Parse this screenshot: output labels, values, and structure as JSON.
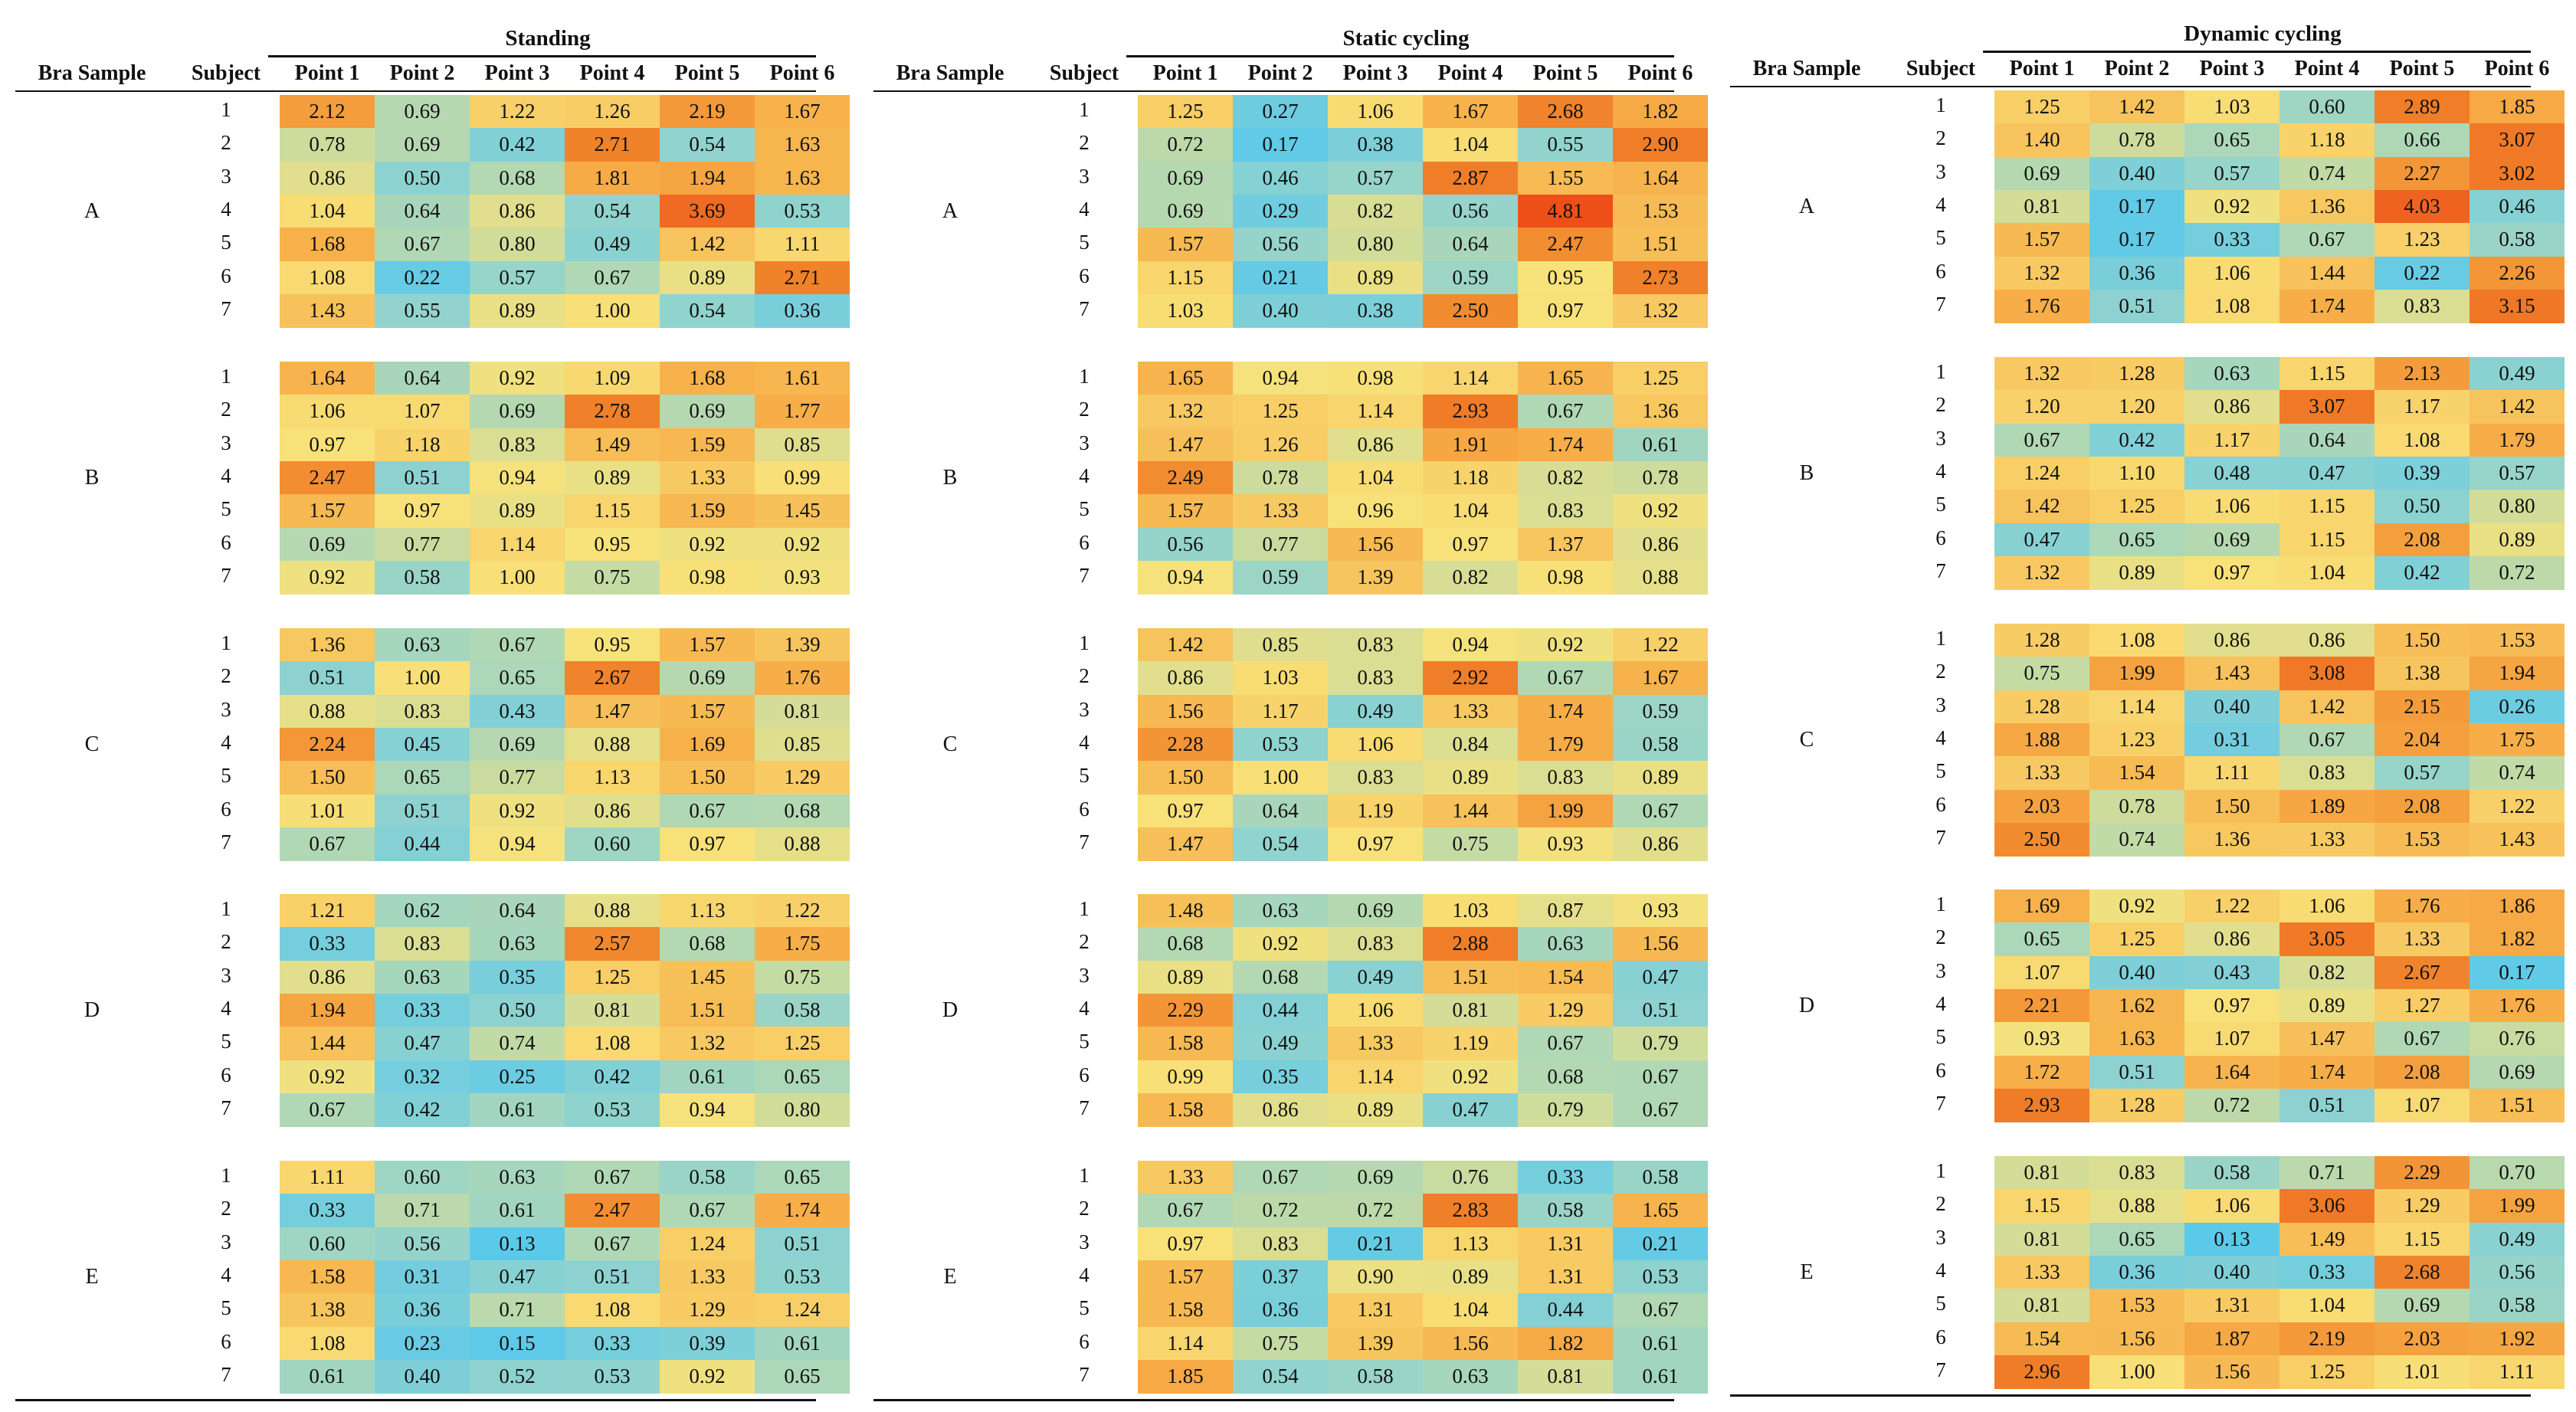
{
  "columns": {
    "bra_sample": "Bra Sample",
    "subject": "Subject",
    "points": [
      "Point 1",
      "Point 2",
      "Point 3",
      "Point 4",
      "Point 5",
      "Point 6"
    ]
  },
  "subject_labels": [
    "1",
    "2",
    "3",
    "4",
    "5",
    "6",
    "7"
  ],
  "color_scale": {
    "low": "#5bc9ea",
    "mid": "#f8e27a",
    "high": "#ee4f18",
    "min": 0.13,
    "max": 4.81
  },
  "panels": [
    {
      "title": "Standing",
      "groups": [
        {
          "label": "A",
          "rows": [
            [
              "2.12",
              "0.69",
              "1.22",
              "1.26",
              "2.19",
              "1.67"
            ],
            [
              "0.78",
              "0.69",
              "0.42",
              "2.71",
              "0.54",
              "1.63"
            ],
            [
              "0.86",
              "0.50",
              "0.68",
              "1.81",
              "1.94",
              "1.63"
            ],
            [
              "1.04",
              "0.64",
              "0.86",
              "0.54",
              "3.69",
              "0.53"
            ],
            [
              "1.68",
              "0.67",
              "0.80",
              "0.49",
              "1.42",
              "1.11"
            ],
            [
              "1.08",
              "0.22",
              "0.57",
              "0.67",
              "0.89",
              "2.71"
            ],
            [
              "1.43",
              "0.55",
              "0.89",
              "1.00",
              "0.54",
              "0.36"
            ]
          ]
        },
        {
          "label": "B",
          "rows": [
            [
              "1.64",
              "0.64",
              "0.92",
              "1.09",
              "1.68",
              "1.61"
            ],
            [
              "1.06",
              "1.07",
              "0.69",
              "2.78",
              "0.69",
              "1.77"
            ],
            [
              "0.97",
              "1.18",
              "0.83",
              "1.49",
              "1.59",
              "0.85"
            ],
            [
              "2.47",
              "0.51",
              "0.94",
              "0.89",
              "1.33",
              "0.99"
            ],
            [
              "1.57",
              "0.97",
              "0.89",
              "1.15",
              "1.59",
              "1.45"
            ],
            [
              "0.69",
              "0.77",
              "1.14",
              "0.95",
              "0.92",
              "0.92"
            ],
            [
              "0.92",
              "0.58",
              "1.00",
              "0.75",
              "0.98",
              "0.93"
            ]
          ]
        },
        {
          "label": "C",
          "rows": [
            [
              "1.36",
              "0.63",
              "0.67",
              "0.95",
              "1.57",
              "1.39"
            ],
            [
              "0.51",
              "1.00",
              "0.65",
              "2.67",
              "0.69",
              "1.76"
            ],
            [
              "0.88",
              "0.83",
              "0.43",
              "1.47",
              "1.57",
              "0.81"
            ],
            [
              "2.24",
              "0.45",
              "0.69",
              "0.88",
              "1.69",
              "0.85"
            ],
            [
              "1.50",
              "0.65",
              "0.77",
              "1.13",
              "1.50",
              "1.29"
            ],
            [
              "1.01",
              "0.51",
              "0.92",
              "0.86",
              "0.67",
              "0.68"
            ],
            [
              "0.67",
              "0.44",
              "0.94",
              "0.60",
              "0.97",
              "0.88"
            ]
          ]
        },
        {
          "label": "D",
          "rows": [
            [
              "1.21",
              "0.62",
              "0.64",
              "0.88",
              "1.13",
              "1.22"
            ],
            [
              "0.33",
              "0.83",
              "0.63",
              "2.57",
              "0.68",
              "1.75"
            ],
            [
              "0.86",
              "0.63",
              "0.35",
              "1.25",
              "1.45",
              "0.75"
            ],
            [
              "1.94",
              "0.33",
              "0.50",
              "0.81",
              "1.51",
              "0.58"
            ],
            [
              "1.44",
              "0.47",
              "0.74",
              "1.08",
              "1.32",
              "1.25"
            ],
            [
              "0.92",
              "0.32",
              "0.25",
              "0.42",
              "0.61",
              "0.65"
            ],
            [
              "0.67",
              "0.42",
              "0.61",
              "0.53",
              "0.94",
              "0.80"
            ]
          ]
        },
        {
          "label": "E",
          "rows": [
            [
              "1.11",
              "0.60",
              "0.63",
              "0.67",
              "0.58",
              "0.65"
            ],
            [
              "0.33",
              "0.71",
              "0.61",
              "2.47",
              "0.67",
              "1.74"
            ],
            [
              "0.60",
              "0.56",
              "0.13",
              "0.67",
              "1.24",
              "0.51"
            ],
            [
              "1.58",
              "0.31",
              "0.47",
              "0.51",
              "1.33",
              "0.53"
            ],
            [
              "1.38",
              "0.36",
              "0.71",
              "1.08",
              "1.29",
              "1.24"
            ],
            [
              "1.08",
              "0.23",
              "0.15",
              "0.33",
              "0.39",
              "0.61"
            ],
            [
              "0.61",
              "0.40",
              "0.52",
              "0.53",
              "0.92",
              "0.65"
            ]
          ]
        }
      ]
    },
    {
      "title": "Static cycling",
      "groups": [
        {
          "label": "A",
          "rows": [
            [
              "1.25",
              "0.27",
              "1.06",
              "1.67",
              "2.68",
              "1.82"
            ],
            [
              "0.72",
              "0.17",
              "0.38",
              "1.04",
              "0.55",
              "2.90"
            ],
            [
              "0.69",
              "0.46",
              "0.57",
              "2.87",
              "1.55",
              "1.64"
            ],
            [
              "0.69",
              "0.29",
              "0.82",
              "0.56",
              "4.81",
              "1.53"
            ],
            [
              "1.57",
              "0.56",
              "0.80",
              "0.64",
              "2.47",
              "1.51"
            ],
            [
              "1.15",
              "0.21",
              "0.89",
              "0.59",
              "0.95",
              "2.73"
            ],
            [
              "1.03",
              "0.40",
              "0.38",
              "2.50",
              "0.97",
              "1.32"
            ]
          ]
        },
        {
          "label": "B",
          "rows": [
            [
              "1.65",
              "0.94",
              "0.98",
              "1.14",
              "1.65",
              "1.25"
            ],
            [
              "1.32",
              "1.25",
              "1.14",
              "2.93",
              "0.67",
              "1.36"
            ],
            [
              "1.47",
              "1.26",
              "0.86",
              "1.91",
              "1.74",
              "0.61"
            ],
            [
              "2.49",
              "0.78",
              "1.04",
              "1.18",
              "0.82",
              "0.78"
            ],
            [
              "1.57",
              "1.33",
              "0.96",
              "1.04",
              "0.83",
              "0.92"
            ],
            [
              "0.56",
              "0.77",
              "1.56",
              "0.97",
              "1.37",
              "0.86"
            ],
            [
              "0.94",
              "0.59",
              "1.39",
              "0.82",
              "0.98",
              "0.88"
            ]
          ]
        },
        {
          "label": "C",
          "rows": [
            [
              "1.42",
              "0.85",
              "0.83",
              "0.94",
              "0.92",
              "1.22"
            ],
            [
              "0.86",
              "1.03",
              "0.83",
              "2.92",
              "0.67",
              "1.67"
            ],
            [
              "1.56",
              "1.17",
              "0.49",
              "1.33",
              "1.74",
              "0.59"
            ],
            [
              "2.28",
              "0.53",
              "1.06",
              "0.84",
              "1.79",
              "0.58"
            ],
            [
              "1.50",
              "1.00",
              "0.83",
              "0.89",
              "0.83",
              "0.89"
            ],
            [
              "0.97",
              "0.64",
              "1.19",
              "1.44",
              "1.99",
              "0.67"
            ],
            [
              "1.47",
              "0.54",
              "0.97",
              "0.75",
              "0.93",
              "0.86"
            ]
          ]
        },
        {
          "label": "D",
          "rows": [
            [
              "1.48",
              "0.63",
              "0.69",
              "1.03",
              "0.87",
              "0.93"
            ],
            [
              "0.68",
              "0.92",
              "0.83",
              "2.88",
              "0.63",
              "1.56"
            ],
            [
              "0.89",
              "0.68",
              "0.49",
              "1.51",
              "1.54",
              "0.47"
            ],
            [
              "2.29",
              "0.44",
              "1.06",
              "0.81",
              "1.29",
              "0.51"
            ],
            [
              "1.58",
              "0.49",
              "1.33",
              "1.19",
              "0.67",
              "0.79"
            ],
            [
              "0.99",
              "0.35",
              "1.14",
              "0.92",
              "0.68",
              "0.67"
            ],
            [
              "1.58",
              "0.86",
              "0.89",
              "0.47",
              "0.79",
              "0.67"
            ]
          ]
        },
        {
          "label": "E",
          "rows": [
            [
              "1.33",
              "0.67",
              "0.69",
              "0.76",
              "0.33",
              "0.58"
            ],
            [
              "0.67",
              "0.72",
              "0.72",
              "2.83",
              "0.58",
              "1.65"
            ],
            [
              "0.97",
              "0.83",
              "0.21",
              "1.13",
              "1.31",
              "0.21"
            ],
            [
              "1.57",
              "0.37",
              "0.90",
              "0.89",
              "1.31",
              "0.53"
            ],
            [
              "1.58",
              "0.36",
              "1.31",
              "1.04",
              "0.44",
              "0.67"
            ],
            [
              "1.14",
              "0.75",
              "1.39",
              "1.56",
              "1.82",
              "0.61"
            ],
            [
              "1.85",
              "0.54",
              "0.58",
              "0.63",
              "0.81",
              "0.61"
            ]
          ]
        }
      ]
    },
    {
      "title": "Dynamic cycling",
      "groups": [
        {
          "label": "A",
          "rows": [
            [
              "1.25",
              "1.42",
              "1.03",
              "0.60",
              "2.89",
              "1.85"
            ],
            [
              "1.40",
              "0.78",
              "0.65",
              "1.18",
              "0.66",
              "3.07"
            ],
            [
              "0.69",
              "0.40",
              "0.57",
              "0.74",
              "2.27",
              "3.02"
            ],
            [
              "0.81",
              "0.17",
              "0.92",
              "1.36",
              "4.03",
              "0.46"
            ],
            [
              "1.57",
              "0.17",
              "0.33",
              "0.67",
              "1.23",
              "0.58"
            ],
            [
              "1.32",
              "0.36",
              "1.06",
              "1.44",
              "0.22",
              "2.26"
            ],
            [
              "1.76",
              "0.51",
              "1.08",
              "1.74",
              "0.83",
              "3.15"
            ]
          ]
        },
        {
          "label": "B",
          "rows": [
            [
              "1.32",
              "1.28",
              "0.63",
              "1.15",
              "2.13",
              "0.49"
            ],
            [
              "1.20",
              "1.20",
              "0.86",
              "3.07",
              "1.17",
              "1.42"
            ],
            [
              "0.67",
              "0.42",
              "1.17",
              "0.64",
              "1.08",
              "1.79"
            ],
            [
              "1.24",
              "1.10",
              "0.48",
              "0.47",
              "0.39",
              "0.57"
            ],
            [
              "1.42",
              "1.25",
              "1.06",
              "1.15",
              "0.50",
              "0.80"
            ],
            [
              "0.47",
              "0.65",
              "0.69",
              "1.15",
              "2.08",
              "0.89"
            ],
            [
              "1.32",
              "0.89",
              "0.97",
              "1.04",
              "0.42",
              "0.72"
            ]
          ]
        },
        {
          "label": "C",
          "rows": [
            [
              "1.28",
              "1.08",
              "0.86",
              "0.86",
              "1.50",
              "1.53"
            ],
            [
              "0.75",
              "1.99",
              "1.43",
              "3.08",
              "1.38",
              "1.94"
            ],
            [
              "1.28",
              "1.14",
              "0.40",
              "1.42",
              "2.15",
              "0.26"
            ],
            [
              "1.88",
              "1.23",
              "0.31",
              "0.67",
              "2.04",
              "1.75"
            ],
            [
              "1.33",
              "1.54",
              "1.11",
              "0.83",
              "0.57",
              "0.74"
            ],
            [
              "2.03",
              "0.78",
              "1.50",
              "1.89",
              "2.08",
              "1.22"
            ],
            [
              "2.50",
              "0.74",
              "1.36",
              "1.33",
              "1.53",
              "1.43"
            ]
          ]
        },
        {
          "label": "D",
          "rows": [
            [
              "1.69",
              "0.92",
              "1.22",
              "1.06",
              "1.76",
              "1.86"
            ],
            [
              "0.65",
              "1.25",
              "0.86",
              "3.05",
              "1.33",
              "1.82"
            ],
            [
              "1.07",
              "0.40",
              "0.43",
              "0.82",
              "2.67",
              "0.17"
            ],
            [
              "2.21",
              "1.62",
              "0.97",
              "0.89",
              "1.27",
              "1.76"
            ],
            [
              "0.93",
              "1.63",
              "1.07",
              "1.47",
              "0.67",
              "0.76"
            ],
            [
              "1.72",
              "0.51",
              "1.64",
              "1.74",
              "2.08",
              "0.69"
            ],
            [
              "2.93",
              "1.28",
              "0.72",
              "0.51",
              "1.07",
              "1.51"
            ]
          ]
        },
        {
          "label": "E",
          "rows": [
            [
              "0.81",
              "0.83",
              "0.58",
              "0.71",
              "2.29",
              "0.70"
            ],
            [
              "1.15",
              "0.88",
              "1.06",
              "3.06",
              "1.29",
              "1.99"
            ],
            [
              "0.81",
              "0.65",
              "0.13",
              "1.49",
              "1.15",
              "0.49"
            ],
            [
              "1.33",
              "0.36",
              "0.40",
              "0.33",
              "2.68",
              "0.56"
            ],
            [
              "0.81",
              "1.53",
              "1.31",
              "1.04",
              "0.69",
              "0.58"
            ],
            [
              "1.54",
              "1.56",
              "1.87",
              "2.19",
              "2.03",
              "1.92"
            ],
            [
              "2.96",
              "1.00",
              "1.56",
              "1.25",
              "1.01",
              "1.11"
            ]
          ]
        }
      ]
    }
  ]
}
